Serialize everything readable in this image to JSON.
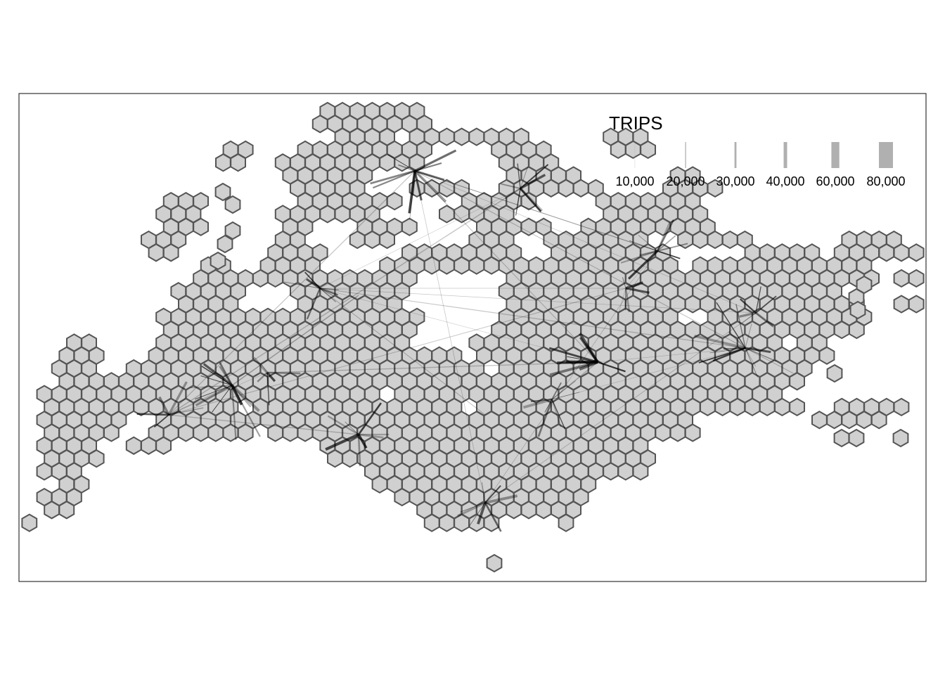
{
  "legend": {
    "title": "TRIPS",
    "entries": [
      {
        "label": "10,000",
        "value": 10000
      },
      {
        "label": "20,000",
        "value": 20000
      },
      {
        "label": "30,000",
        "value": 30000
      },
      {
        "label": "40,000",
        "value": 40000
      },
      {
        "label": "60,000",
        "value": 60000
      },
      {
        "label": "80,000",
        "value": 80000
      }
    ]
  },
  "colors": {
    "hex_fill": "#d0d0d0",
    "hex_stroke": "#555555",
    "flow": "#000000",
    "legend_bar": "#b0b0b0",
    "frame": "#333333"
  },
  "map": {
    "type": "hexagon flow map",
    "style": "grey hexagon grid with origin-destination flow lines, line width scaled by trips"
  }
}
